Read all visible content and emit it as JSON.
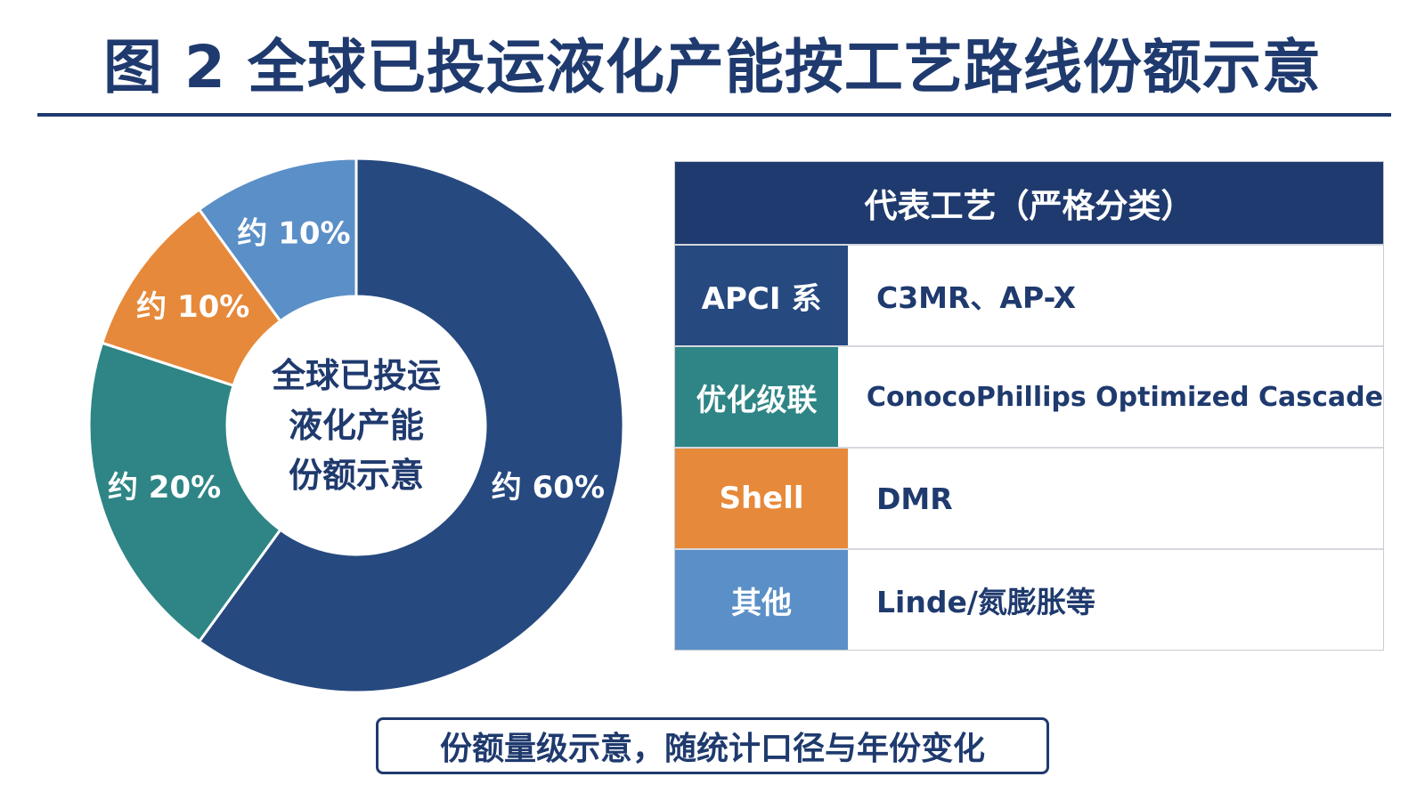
{
  "header": {
    "title": "图 2  全球已投运液化产能按工艺路线份额示意"
  },
  "chart_data": {
    "type": "pie",
    "center_text": [
      "全球已投运",
      "液化产能",
      "份额示意"
    ],
    "slices": [
      {
        "label": "约 60%",
        "value": 60,
        "color": "#26497f"
      },
      {
        "label": "约 20%",
        "value": 20,
        "color": "#2f8585"
      },
      {
        "label": "约 10%",
        "value": 10,
        "color": "#e6893a"
      },
      {
        "label": "约 10%",
        "value": 10,
        "color": "#5b8fc7"
      }
    ]
  },
  "table": {
    "header": "代表工艺（严格分类）",
    "rows": [
      {
        "category": "APCI 系",
        "value": "C3MR、AP-X",
        "color": "#26497f"
      },
      {
        "category": "优化级联",
        "value": "ConocoPhillips Optimized Cascade",
        "color": "#2f8585"
      },
      {
        "category": "Shell",
        "value": "DMR",
        "color": "#e6893a"
      },
      {
        "category": "其他",
        "value": "Linde/氮膨胀等",
        "color": "#5b8fc7"
      }
    ]
  },
  "footer": {
    "note": "份额量级示意，随统计口径与年份变化"
  }
}
